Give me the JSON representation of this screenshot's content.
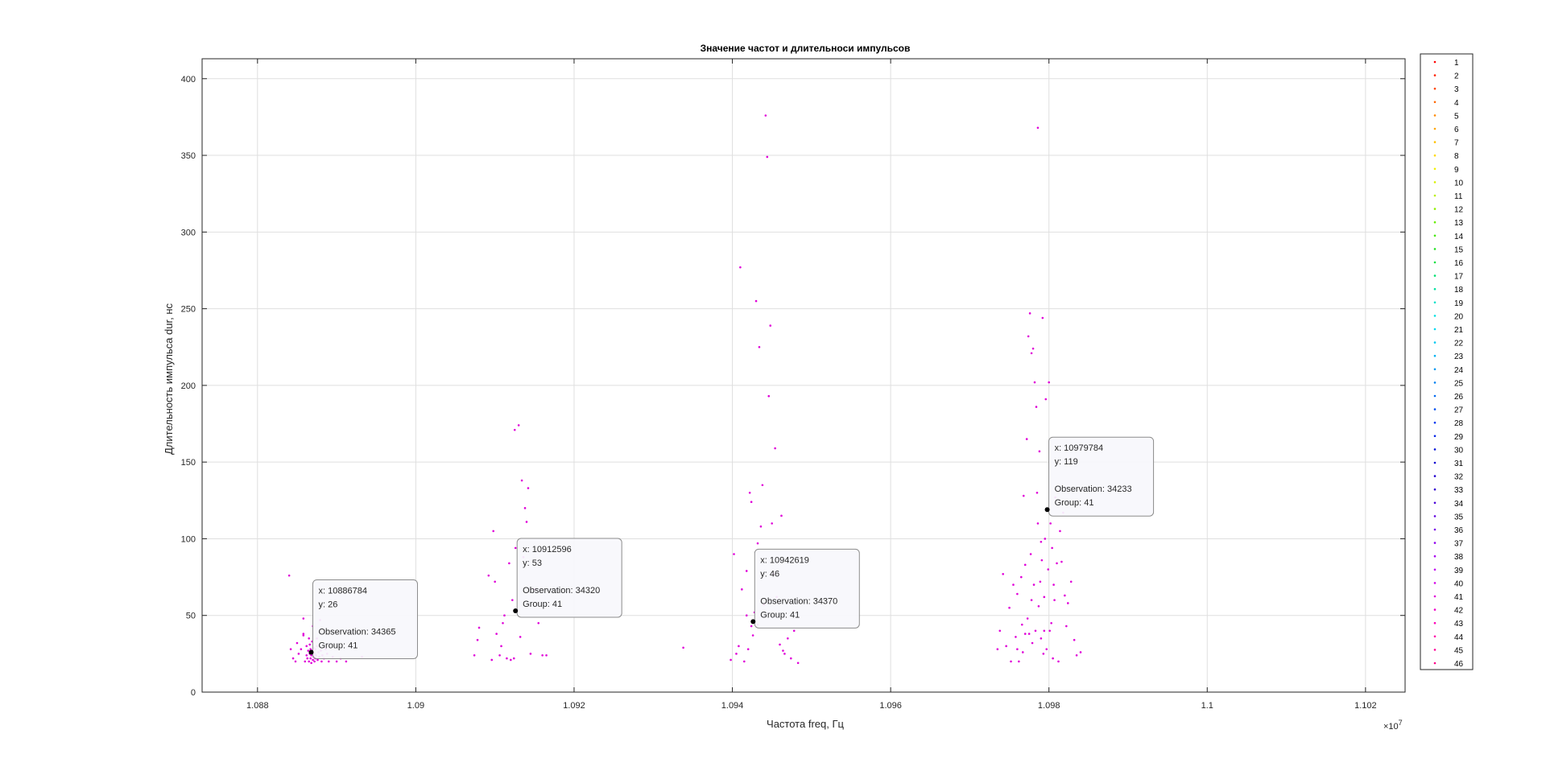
{
  "chart_data": {
    "type": "scatter",
    "title": "Значение частот и длительноси импульсов",
    "xlabel": "Частота freq, Гц",
    "ylabel": "Длительность импульса dur, нс",
    "x_exponent_label": "×10",
    "x_exponent_power": "7",
    "x_scale": 10000000,
    "xlim": [
      1.0873,
      1.1025
    ],
    "ylim": [
      0,
      413
    ],
    "xticks": [
      1.088,
      1.09,
      1.092,
      1.094,
      1.096,
      1.098,
      1.1,
      1.102
    ],
    "xtick_labels": [
      "1.088",
      "1.09",
      "1.092",
      "1.094",
      "1.096",
      "1.098",
      "1.1",
      "1.102"
    ],
    "yticks": [
      0,
      50,
      100,
      150,
      200,
      250,
      300,
      350,
      400
    ],
    "ytick_labels": [
      "0",
      "50",
      "100",
      "150",
      "200",
      "250",
      "300",
      "350",
      "400"
    ],
    "grid": true,
    "legend_position": "right-outside",
    "legend": [
      "1",
      "2",
      "3",
      "4",
      "5",
      "6",
      "7",
      "8",
      "9",
      "10",
      "11",
      "12",
      "13",
      "14",
      "15",
      "16",
      "17",
      "18",
      "19",
      "20",
      "21",
      "22",
      "23",
      "24",
      "25",
      "26",
      "27",
      "28",
      "29",
      "30",
      "31",
      "32",
      "33",
      "34",
      "35",
      "36",
      "37",
      "38",
      "39",
      "40",
      "41",
      "42",
      "43",
      "44",
      "45",
      "46"
    ],
    "legend_colors": [
      "#ff0000",
      "#ff2200",
      "#ff4400",
      "#ff6600",
      "#ff8800",
      "#ffa600",
      "#ffc000",
      "#ffd800",
      "#f0f000",
      "#d8f000",
      "#b8f000",
      "#90f000",
      "#66ee00",
      "#40e800",
      "#20e020",
      "#10e040",
      "#00e070",
      "#00e0a0",
      "#00e0c8",
      "#00e0e0",
      "#00d8f0",
      "#00c8f0",
      "#00b0f0",
      "#0098f0",
      "#0080f0",
      "#0068f0",
      "#0050f0",
      "#0038f0",
      "#0020e8",
      "#0010d8",
      "#1000d0",
      "#2000d0",
      "#3000d0",
      "#4800d8",
      "#6000e0",
      "#7800e8",
      "#9000f0",
      "#a800f0",
      "#c000f0",
      "#d400e8",
      "#e000d8",
      "#f000c8",
      "#ff00b8",
      "#ff00a8",
      "#ff0098",
      "#ff0088"
    ],
    "point_color": "#e000d8",
    "point_series": "41",
    "points": [
      [
        1.0884,
        76
      ],
      [
        1.08842,
        28
      ],
      [
        1.08845,
        22
      ],
      [
        1.08848,
        20
      ],
      [
        1.0885,
        32
      ],
      [
        1.08852,
        25
      ],
      [
        1.08855,
        28
      ],
      [
        1.08858,
        38
      ],
      [
        1.08858,
        48
      ],
      [
        1.0886,
        20
      ],
      [
        1.08862,
        24
      ],
      [
        1.08862,
        30
      ],
      [
        1.08863,
        22
      ],
      [
        1.08864,
        27
      ],
      [
        1.08865,
        35
      ],
      [
        1.08865,
        20
      ],
      [
        1.08866,
        25
      ],
      [
        1.08866,
        31
      ],
      [
        1.08867,
        22
      ],
      [
        1.08867,
        28
      ],
      [
        1.08868,
        24
      ],
      [
        1.08868,
        19
      ],
      [
        1.08869,
        27
      ],
      [
        1.08869,
        33
      ],
      [
        1.0887,
        21
      ],
      [
        1.0887,
        26
      ],
      [
        1.08871,
        23
      ],
      [
        1.08871,
        29
      ],
      [
        1.08872,
        20
      ],
      [
        1.08872,
        25
      ],
      [
        1.08873,
        22
      ],
      [
        1.08873,
        28
      ],
      [
        1.08874,
        24
      ],
      [
        1.08875,
        30
      ],
      [
        1.08876,
        21
      ],
      [
        1.08877,
        26
      ],
      [
        1.08878,
        23
      ],
      [
        1.08879,
        47
      ],
      [
        1.0888,
        27
      ],
      [
        1.08881,
        20
      ],
      [
        1.08882,
        24
      ],
      [
        1.08884,
        22
      ],
      [
        1.08886,
        28
      ],
      [
        1.08888,
        25
      ],
      [
        1.0889,
        20
      ],
      [
        1.08895,
        23
      ],
      [
        1.089,
        20
      ],
      [
        1.08905,
        22
      ],
      [
        1.08912,
        20
      ],
      [
        1.08932,
        23
      ],
      [
        1.0887,
        43
      ],
      [
        1.08858,
        37
      ],
      [
        1.08875,
        35
      ],
      [
        1.09074,
        24
      ],
      [
        1.09078,
        34
      ],
      [
        1.0908,
        42
      ],
      [
        1.09092,
        76
      ],
      [
        1.09096,
        21
      ],
      [
        1.09098,
        105
      ],
      [
        1.091,
        72
      ],
      [
        1.09102,
        38
      ],
      [
        1.09106,
        24
      ],
      [
        1.09108,
        30
      ],
      [
        1.0911,
        45
      ],
      [
        1.09112,
        50
      ],
      [
        1.09115,
        22
      ],
      [
        1.09118,
        84
      ],
      [
        1.0912,
        21
      ],
      [
        1.09122,
        60
      ],
      [
        1.09124,
        22
      ],
      [
        1.09125,
        171
      ],
      [
        1.09126,
        94
      ],
      [
        1.09128,
        53
      ],
      [
        1.0913,
        174
      ],
      [
        1.09132,
        36
      ],
      [
        1.09134,
        138
      ],
      [
        1.09136,
        88
      ],
      [
        1.09138,
        120
      ],
      [
        1.0914,
        111
      ],
      [
        1.09142,
        133
      ],
      [
        1.09145,
        25
      ],
      [
        1.0915,
        67
      ],
      [
        1.09155,
        45
      ],
      [
        1.0916,
        24
      ],
      [
        1.09165,
        24
      ],
      [
        1.09338,
        29
      ],
      [
        1.09398,
        21
      ],
      [
        1.09402,
        90
      ],
      [
        1.09405,
        25
      ],
      [
        1.09408,
        30
      ],
      [
        1.0941,
        277
      ],
      [
        1.09412,
        67
      ],
      [
        1.09415,
        20
      ],
      [
        1.09418,
        79
      ],
      [
        1.0942,
        28
      ],
      [
        1.09422,
        130
      ],
      [
        1.09424,
        124
      ],
      [
        1.09426,
        37
      ],
      [
        1.09428,
        52
      ],
      [
        1.0943,
        255
      ],
      [
        1.09432,
        97
      ],
      [
        1.09434,
        225
      ],
      [
        1.09436,
        108
      ],
      [
        1.09438,
        135
      ],
      [
        1.0944,
        57
      ],
      [
        1.09442,
        376
      ],
      [
        1.09444,
        349
      ],
      [
        1.09446,
        193
      ],
      [
        1.09448,
        239
      ],
      [
        1.0945,
        110
      ],
      [
        1.09452,
        77
      ],
      [
        1.09454,
        159
      ],
      [
        1.09456,
        62
      ],
      [
        1.0946,
        31
      ],
      [
        1.09462,
        115
      ],
      [
        1.09464,
        27
      ],
      [
        1.09466,
        25
      ],
      [
        1.0947,
        35
      ],
      [
        1.09474,
        22
      ],
      [
        1.09478,
        40
      ],
      [
        1.09483,
        19
      ],
      [
        1.09426,
        46
      ],
      [
        1.09424,
        43
      ],
      [
        1.09432,
        44
      ],
      [
        1.09418,
        50
      ],
      [
        1.09735,
        28
      ],
      [
        1.09738,
        40
      ],
      [
        1.09742,
        77
      ],
      [
        1.09746,
        30
      ],
      [
        1.0975,
        55
      ],
      [
        1.09752,
        20
      ],
      [
        1.09755,
        70
      ],
      [
        1.09758,
        36
      ],
      [
        1.0976,
        64
      ],
      [
        1.09762,
        20
      ],
      [
        1.09765,
        75
      ],
      [
        1.09767,
        26
      ],
      [
        1.09768,
        128
      ],
      [
        1.0977,
        83
      ],
      [
        1.09772,
        165
      ],
      [
        1.09773,
        48
      ],
      [
        1.09774,
        232
      ],
      [
        1.09775,
        38
      ],
      [
        1.09776,
        247
      ],
      [
        1.09777,
        90
      ],
      [
        1.09778,
        221
      ],
      [
        1.09779,
        32
      ],
      [
        1.0978,
        224
      ],
      [
        1.09781,
        70
      ],
      [
        1.09782,
        202
      ],
      [
        1.09783,
        40
      ],
      [
        1.09784,
        186
      ],
      [
        1.09785,
        130
      ],
      [
        1.09786,
        368
      ],
      [
        1.09787,
        56
      ],
      [
        1.09788,
        157
      ],
      [
        1.09789,
        72
      ],
      [
        1.0979,
        35
      ],
      [
        1.09791,
        86
      ],
      [
        1.09792,
        244
      ],
      [
        1.09793,
        25
      ],
      [
        1.09794,
        62
      ],
      [
        1.09795,
        100
      ],
      [
        1.09796,
        191
      ],
      [
        1.09797,
        28
      ],
      [
        1.09798,
        119
      ],
      [
        1.09799,
        80
      ],
      [
        1.098,
        202
      ],
      [
        1.09801,
        40
      ],
      [
        1.09802,
        110
      ],
      [
        1.09803,
        45
      ],
      [
        1.09804,
        94
      ],
      [
        1.09805,
        22
      ],
      [
        1.09806,
        70
      ],
      [
        1.09807,
        60
      ],
      [
        1.09808,
        127
      ],
      [
        1.0981,
        84
      ],
      [
        1.09812,
        20
      ],
      [
        1.09814,
        105
      ],
      [
        1.09816,
        85
      ],
      [
        1.09818,
        117
      ],
      [
        1.0982,
        63
      ],
      [
        1.09822,
        43
      ],
      [
        1.09824,
        58
      ],
      [
        1.09828,
        72
      ],
      [
        1.09832,
        34
      ],
      [
        1.09835,
        24
      ],
      [
        1.0984,
        26
      ],
      [
        1.0979,
        98
      ],
      [
        1.09786,
        110
      ],
      [
        1.09794,
        40
      ],
      [
        1.09778,
        60
      ],
      [
        1.0977,
        38
      ],
      [
        1.09766,
        44
      ],
      [
        1.0976,
        28
      ]
    ],
    "datatips": [
      {
        "x": 1.0886784,
        "y": 26,
        "lines": [
          "x: 10886784",
          "y: 26",
          "",
          "Observation: 34365",
          "Group: 41"
        ],
        "side": "right"
      },
      {
        "x": 1.0912596,
        "y": 53,
        "lines": [
          "x: 10912596",
          "y: 53",
          "",
          "Observation: 34320",
          "Group: 41"
        ],
        "side": "right"
      },
      {
        "x": 1.0942619,
        "y": 46,
        "lines": [
          "x: 10942619",
          "y: 46",
          "",
          "Observation: 34370",
          "Group: 41"
        ],
        "side": "right"
      },
      {
        "x": 1.0979784,
        "y": 119,
        "lines": [
          "x: 10979784",
          "y: 119",
          "",
          "Observation: 34233",
          "Group: 41"
        ],
        "side": "right"
      }
    ]
  }
}
